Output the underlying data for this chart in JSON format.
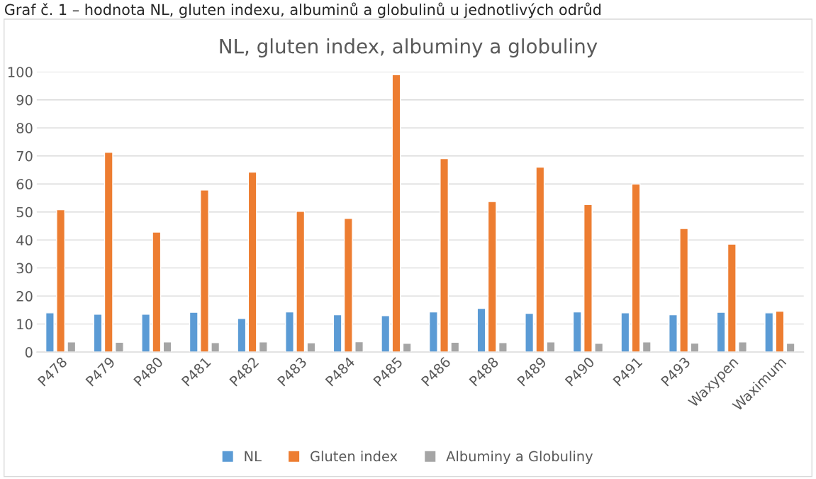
{
  "chart_data": {
    "type": "bar",
    "title": "NL, gluten index, albuminy a globuliny",
    "annotations": [
      "Graf č. 1 – hodnota NL, gluten indexu, albuminů a globulinů u jednotlivých odrůd"
    ],
    "categories": [
      "P478",
      "P479",
      "P480",
      "P481",
      "P482",
      "P483",
      "P484",
      "P485",
      "P486",
      "P488",
      "P489",
      "P490",
      "P491",
      "P493",
      "Waxypen",
      "Waximum"
    ],
    "series": [
      {
        "name": "NL",
        "color": "#5b9bd5",
        "values": [
          14,
          13.5,
          13.5,
          14.2,
          12,
          14.3,
          13.3,
          13,
          14.3,
          15.6,
          13.8,
          14.3,
          14,
          13.3,
          14.2,
          14
        ]
      },
      {
        "name": "Gluten index",
        "color": "#ed7d31",
        "values": [
          50.8,
          71.3,
          42.8,
          57.8,
          64.2,
          50.2,
          47.7,
          99,
          69,
          53.7,
          66,
          52.6,
          60,
          44.1,
          38.5,
          14.6
        ]
      },
      {
        "name": "Albuminy a Globuliny",
        "color": "#a5a5a5",
        "values": [
          3.6,
          3.5,
          3.6,
          3.4,
          3.6,
          3.3,
          3.7,
          3.1,
          3.5,
          3.4,
          3.6,
          3.1,
          3.6,
          3.2,
          3.6,
          3.1
        ]
      }
    ],
    "ylim": [
      0,
      100
    ],
    "yticks": [
      0,
      10,
      20,
      30,
      40,
      50,
      60,
      70,
      80,
      90,
      100
    ],
    "grid": "y",
    "legend": "bottom"
  }
}
